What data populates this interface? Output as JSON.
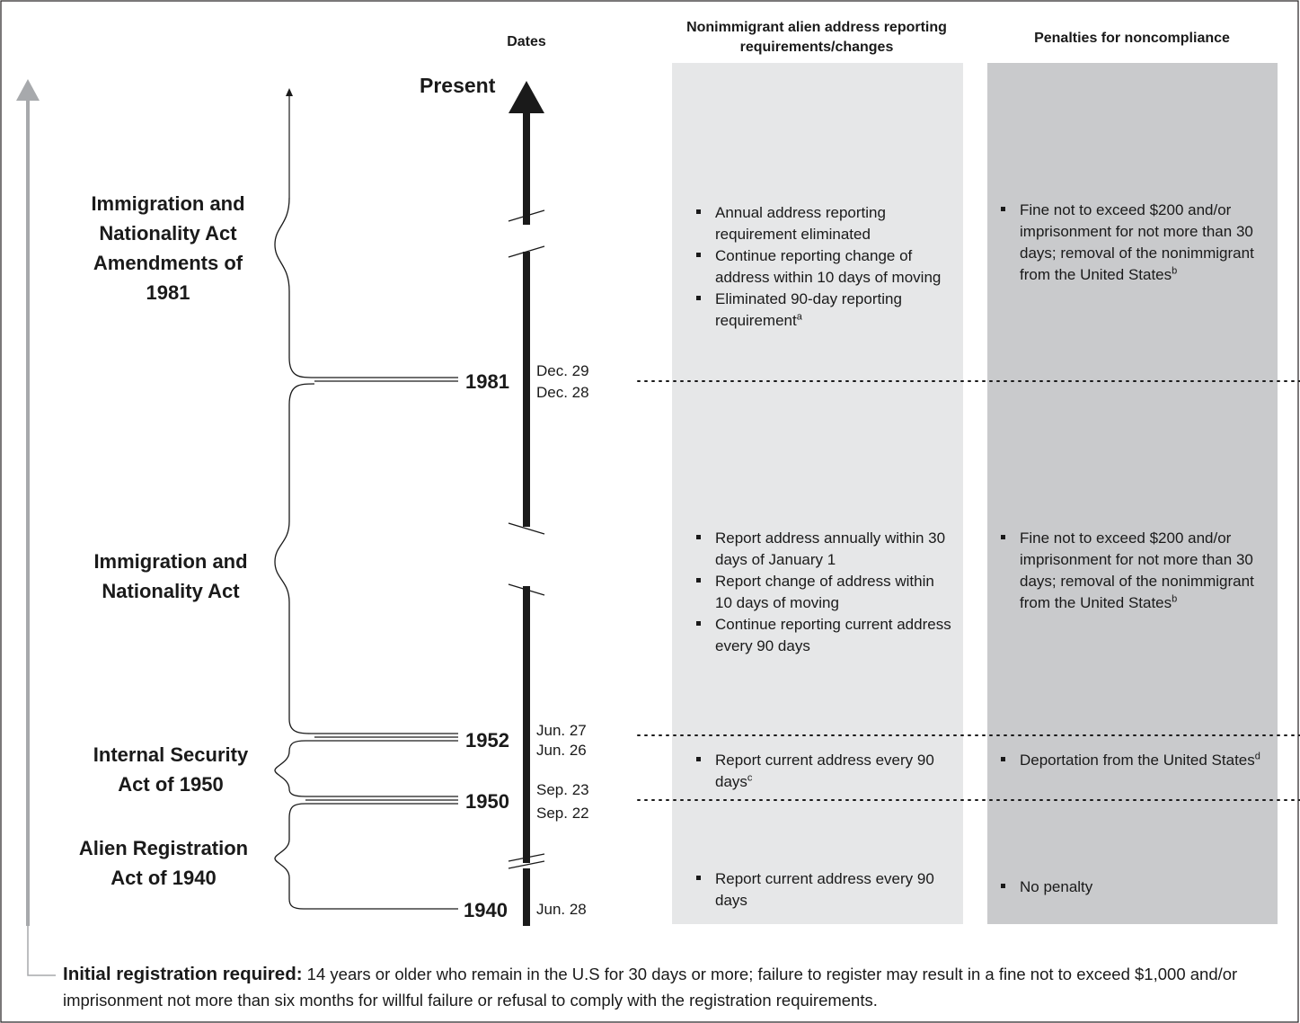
{
  "headers": {
    "dates": "Dates",
    "requirements": "Nonimmigrant alien address reporting requirements/changes",
    "penalties": "Penalties for noncompliance"
  },
  "present_label": "Present",
  "acts": [
    {
      "name": "Immigration and Nationality Act Amendments of 1981"
    },
    {
      "name": "Immigration and Nationality Act"
    },
    {
      "name": "Internal Security Act of 1950"
    },
    {
      "name": "Alien Registration Act of 1940"
    }
  ],
  "years": [
    "1981",
    "1952",
    "1950",
    "1940"
  ],
  "dates": {
    "d1981_after": "Dec. 29",
    "d1981_before": "Dec. 28",
    "d1952_after": "Jun. 27",
    "d1952_before": "Jun. 26",
    "d1950_after": "Sep. 23",
    "d1950_before": "Sep. 22",
    "d1940": "Jun. 28"
  },
  "requirements": [
    {
      "items": [
        {
          "text": "Annual address reporting requirement eliminated",
          "note": ""
        },
        {
          "text": "Continue reporting change of address within 10 days of moving",
          "note": ""
        },
        {
          "text": "Eliminated 90-day reporting requirement",
          "note": "a"
        }
      ]
    },
    {
      "items": [
        {
          "text": "Report address annually within 30 days of January 1",
          "note": ""
        },
        {
          "text": "Report change of address within 10 days of moving",
          "note": ""
        },
        {
          "text": "Continue reporting current address every 90 days",
          "note": ""
        }
      ]
    },
    {
      "items": [
        {
          "text": "Report current address every 90 days",
          "note": "c"
        }
      ]
    },
    {
      "items": [
        {
          "text": "Report current address every 90 days",
          "note": ""
        }
      ]
    }
  ],
  "penalties": [
    {
      "items": [
        {
          "text": "Fine not to exceed $200 and/or imprisonment for not more than 30 days; removal of the nonimmigrant from the United States",
          "note": "b"
        }
      ]
    },
    {
      "items": [
        {
          "text": "Fine not to exceed $200 and/or imprisonment for not more than 30 days; removal of the nonimmigrant from the United States",
          "note": "b"
        }
      ]
    },
    {
      "items": [
        {
          "text": "Deportation from the United States",
          "note": "d"
        }
      ]
    },
    {
      "items": [
        {
          "text": "No penalty",
          "note": ""
        }
      ]
    }
  ],
  "footnote": {
    "label": "Initial registration required:",
    "text": " 14 years or older who remain in the U.S for 30 days or more; failure to register may result in a fine not to exceed $1,000 and/or imprisonment not more than six months for willful failure or refusal to comply with the registration requirements."
  },
  "colors": {
    "req_panel": "#e6e7e8",
    "pen_panel": "#c9cacc",
    "left_arrow": "#a7a9ac",
    "timeline": "#1a1a1a"
  }
}
